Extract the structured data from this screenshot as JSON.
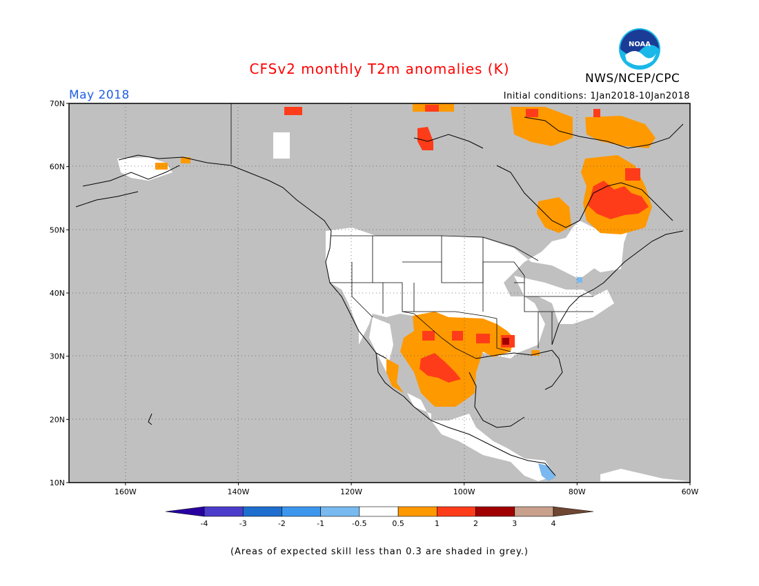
{
  "header": {
    "title": "CFSv2 monthly T2m anomalies (K)",
    "month": "May 2018",
    "initial_conditions": "Initial conditions: 1Jan2018-10Jan2018",
    "org": "NWS/NCEP/CPC",
    "logo_text": "NOAA"
  },
  "map": {
    "lon_range": [
      -170,
      -60
    ],
    "lat_range": [
      10,
      70
    ],
    "lon_ticks": [
      {
        "value": -160,
        "label": "160W"
      },
      {
        "value": -140,
        "label": "140W"
      },
      {
        "value": -120,
        "label": "120W"
      },
      {
        "value": -100,
        "label": "100W"
      },
      {
        "value": -80,
        "label": "80W"
      },
      {
        "value": -60,
        "label": "60W"
      }
    ],
    "lat_ticks": [
      {
        "value": 70,
        "label": "70N"
      },
      {
        "value": 60,
        "label": "60N"
      },
      {
        "value": 50,
        "label": "50N"
      },
      {
        "value": 40,
        "label": "40N"
      },
      {
        "value": 30,
        "label": "30N"
      },
      {
        "value": 20,
        "label": "20N"
      },
      {
        "value": 10,
        "label": "10N"
      }
    ],
    "colors": {
      "skill_grey": "#c0c0c0",
      "neutral": "#ffffff",
      "warm_05_1": "#ff9900",
      "warm_1_2": "#ff3c19",
      "warm_2_3": "#a00000",
      "cool_05_1": "#7ab8ef",
      "coast": "#000000"
    }
  },
  "colorbar": {
    "colors": [
      "#2800a0",
      "#4b3ccc",
      "#1e6ecf",
      "#3c96ee",
      "#78b9f0",
      "#ffffff",
      "#ff9900",
      "#ff3c19",
      "#a00000",
      "#c8a08c",
      "#6e4632"
    ],
    "tick_labels": [
      "-4",
      "-3",
      "-2",
      "-1",
      "-0.5",
      "0.5",
      "1",
      "2",
      "3",
      "4"
    ]
  },
  "footer": {
    "skill_note": "(Areas of expected skill less than 0.3 are shaded in grey.)"
  }
}
